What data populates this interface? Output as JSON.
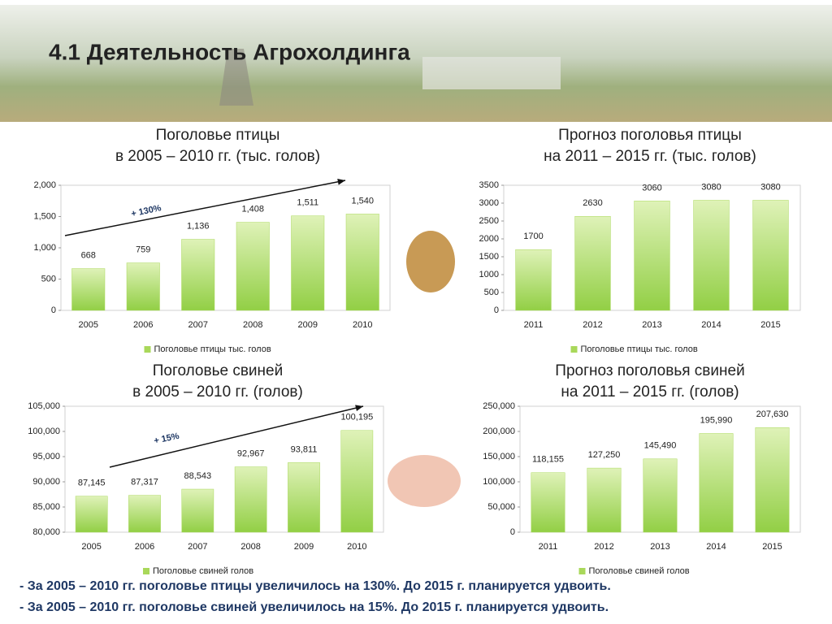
{
  "title": "4.1 Деятельность Агрохолдинга",
  "notes": [
    "- За 2005 – 2010 гг. поголовье птицы увеличилось на 130%. До 2015 г. планируется удвоить.",
    "- За 2005 – 2010 гг. поголовье свиней увеличилось на 15%. До 2015 г. планируется удвоить."
  ],
  "chart_data": [
    {
      "type": "bar",
      "title": [
        "Поголовье птицы",
        "в 2005 – 2010 гг. (тыс. голов)"
      ],
      "annotation": "+ 130%",
      "categories": [
        "2005",
        "2006",
        "2007",
        "2008",
        "2009",
        "2010"
      ],
      "series": [
        {
          "name": "Поголовье  птицы тыс. голов",
          "color": "#a9d85a",
          "values": [
            668,
            759,
            1136,
            1408,
            1511,
            1540
          ],
          "value_labels": [
            "668",
            "759",
            "1,136",
            "1,408",
            "1,511",
            "1,540"
          ]
        }
      ],
      "ylim": [
        0,
        2000
      ],
      "yticks": [
        0,
        500,
        {
          "value": 1000,
          "label": "1,000"
        },
        {
          "value": 1500,
          "label": "1,500"
        },
        {
          "value": 2000,
          "label": "2,000"
        }
      ]
    },
    {
      "type": "bar",
      "title": [
        "Прогноз поголовья птицы",
        "на 2011 – 2015 гг. (тыс. голов)"
      ],
      "categories": [
        "2011",
        "2012",
        "2013",
        "2014",
        "2015"
      ],
      "series": [
        {
          "name": "Поголовье  птицы тыс. голов",
          "color": "#a9d85a",
          "values": [
            1700,
            2630,
            3060,
            3080,
            3080
          ]
        }
      ],
      "ylim": [
        0,
        3500
      ],
      "yticks": [
        0,
        500,
        1000,
        1500,
        2000,
        2500,
        3000,
        3500
      ]
    },
    {
      "type": "bar",
      "title": [
        "Поголовье свиней",
        "в 2005 – 2010 гг. (голов)"
      ],
      "annotation": "+ 15%",
      "categories": [
        "2005",
        "2006",
        "2007",
        "2008",
        "2009",
        "2010"
      ],
      "series": [
        {
          "name": "Поголовье свиней голов",
          "color": "#a9d85a",
          "values": [
            87145,
            87317,
            88543,
            92967,
            93811,
            100195
          ],
          "value_labels": [
            "87,145",
            "87,317",
            "88,543",
            "92,967",
            "93,811",
            "100,195"
          ]
        }
      ],
      "ylim": [
        80000,
        105000
      ],
      "yticks": [
        {
          "value": 80000,
          "label": "80,000"
        },
        {
          "value": 85000,
          "label": "85,000"
        },
        {
          "value": 90000,
          "label": "90,000"
        },
        {
          "value": 95000,
          "label": "95,000"
        },
        {
          "value": 100000,
          "label": "100,000"
        },
        {
          "value": 105000,
          "label": "105,000"
        }
      ]
    },
    {
      "type": "bar",
      "title": [
        "Прогноз поголовья свиней",
        "на 2011 – 2015 гг. (голов)"
      ],
      "categories": [
        "2011",
        "2012",
        "2013",
        "2014",
        "2015"
      ],
      "series": [
        {
          "name": "Поголовье свиней голов",
          "color": "#a9d85a",
          "values": [
            118155,
            127250,
            145490,
            195990,
            207630
          ],
          "value_labels": [
            "118,155",
            "127,250",
            "145,490",
            "195,990",
            "207,630"
          ]
        }
      ],
      "ylim": [
        0,
        250000
      ],
      "yticks": [
        0,
        {
          "value": 50000,
          "label": "50,000"
        },
        {
          "value": 100000,
          "label": "100,000"
        },
        {
          "value": 150000,
          "label": "150,000"
        },
        {
          "value": 200000,
          "label": "200,000"
        },
        {
          "value": 250000,
          "label": "250,000"
        }
      ]
    }
  ]
}
